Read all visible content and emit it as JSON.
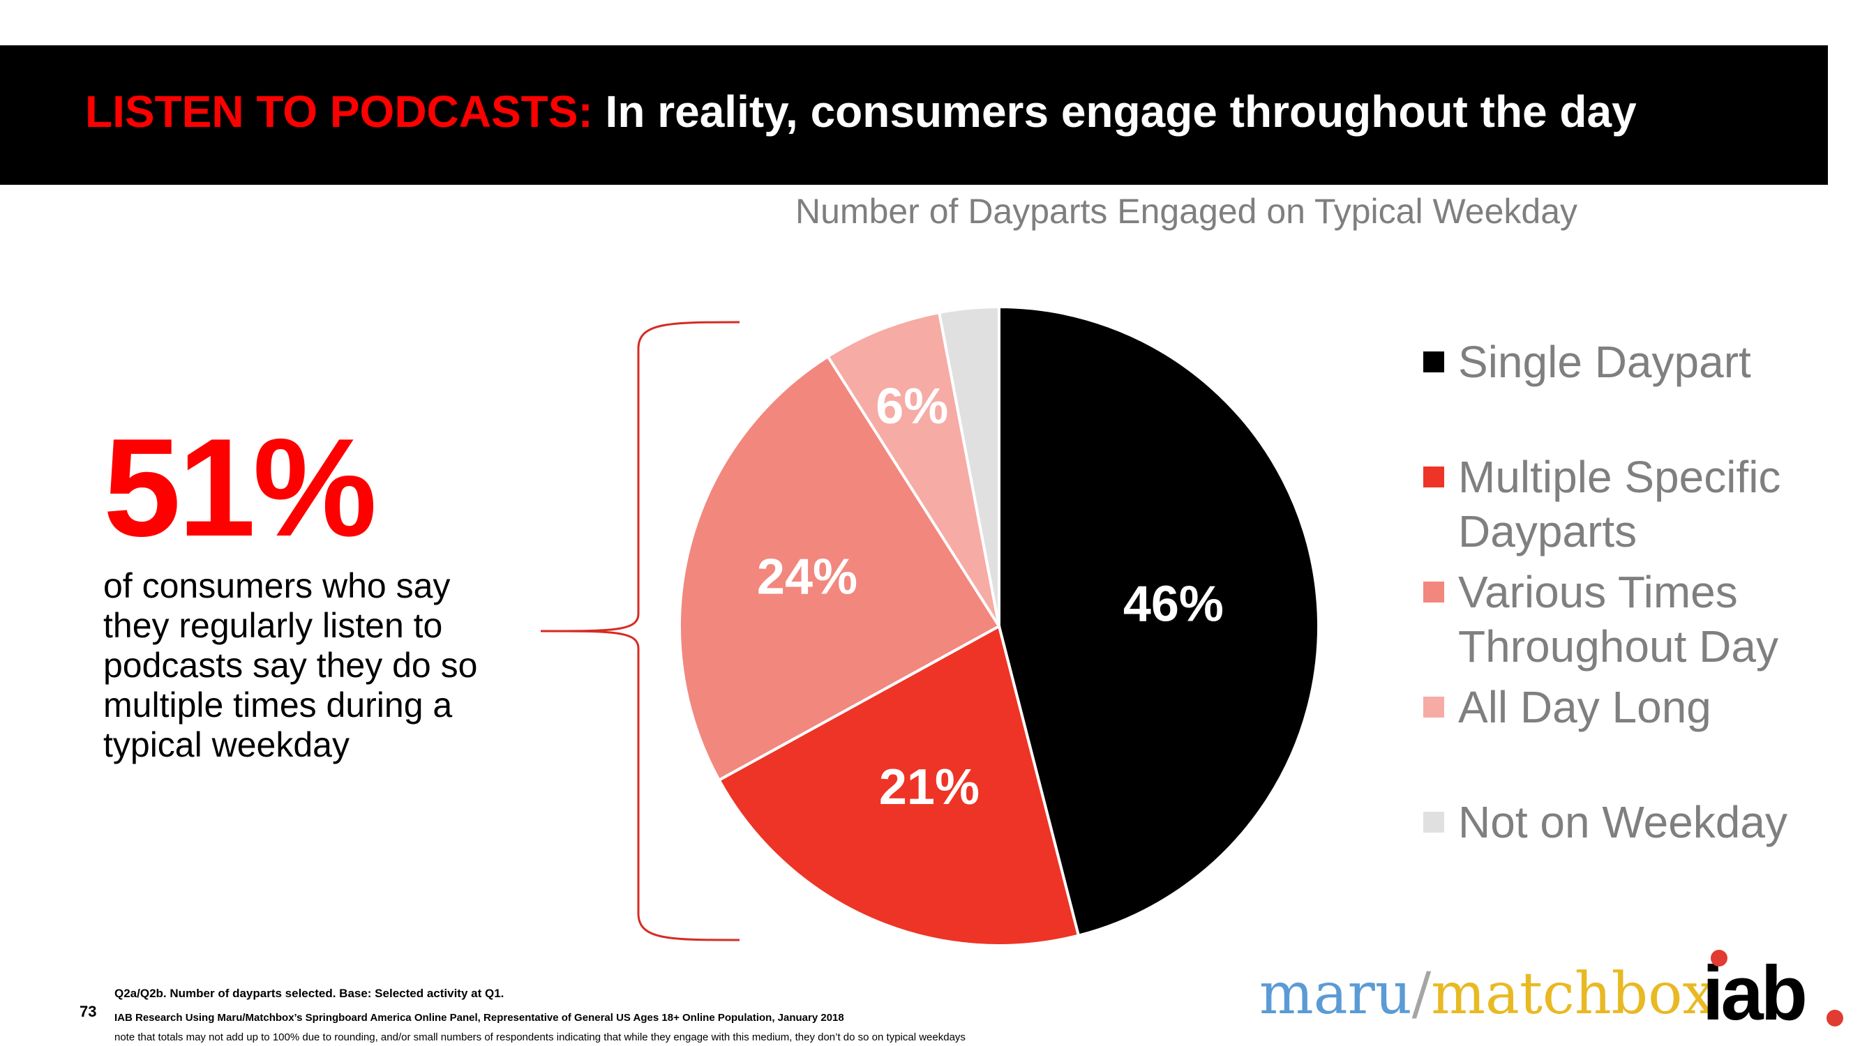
{
  "header": {
    "title_highlight": "LISTEN TO PODCASTS:",
    "title_main": " In reality, consumers engage throughout the day"
  },
  "colors": {
    "accent_red": "#ff0000",
    "title_bar": "#000000",
    "muted_gray": "#7f7f7f"
  },
  "stat": {
    "value": "51%",
    "caption": "of consumers who say they regularly listen to podcasts say they do so multiple times during a typical weekday"
  },
  "chart_data": {
    "type": "pie",
    "title": "Number of Dayparts Engaged on Typical Weekday",
    "series": [
      {
        "name": "Single Daypart",
        "value": 46,
        "label": "46%",
        "color": "#000000",
        "label_color": "#ffffff"
      },
      {
        "name": "Multiple Specific Dayparts",
        "value": 21,
        "label": "21%",
        "color": "#ee3426",
        "label_color": "#ffffff"
      },
      {
        "name": "Various Times Throughout Day",
        "value": 24,
        "label": "24%",
        "color": "#f2877e",
        "label_color": "#ffffff"
      },
      {
        "name": "All Day Long",
        "value": 6,
        "label": "6%",
        "color": "#f6aba5",
        "label_color": "#ffffff"
      },
      {
        "name": "Not on Weekday",
        "value": 3,
        "label": "",
        "color": "#e0e0e0",
        "label_color": "#ffffff"
      }
    ],
    "start_angle": "12 o'clock",
    "direction": "clockwise",
    "legend": {
      "position": "right",
      "items": [
        "Single Daypart",
        "Multiple Specific Dayparts",
        "Various Times Throughout Day",
        "All Day Long",
        "Not on Weekday"
      ]
    }
  },
  "footer": {
    "page_number": "73",
    "line1": "Q2a/Q2b. Number of dayparts selected. Base: Selected activity at Q1.",
    "line2": "IAB Research Using Maru/Matchbox’s Springboard America Online Panel, Representative of General US Ages 18+ Online Population, January 2018",
    "line3": "note that totals may not add up to 100% due to rounding, and/or small numbers of respondents indicating that while they engage with this medium, they don’t do so on typical weekdays"
  },
  "logos": {
    "maru": "maru",
    "separator": "/",
    "matchbox": "matchbox",
    "iab": "iab"
  }
}
